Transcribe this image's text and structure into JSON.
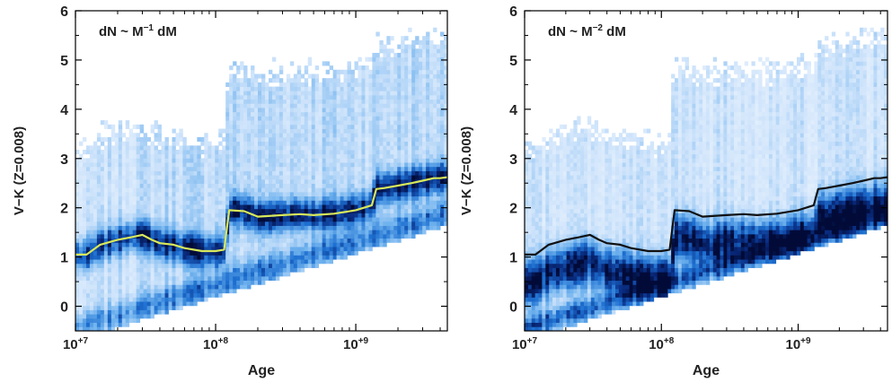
{
  "chart_data": [
    {
      "type": "heatmap",
      "annotation": {
        "base": "dN ~ M",
        "sup": "−1",
        "tail": " dM"
      },
      "xlabel": "Age",
      "ylabel": "V−K (Z=0.008)",
      "x_scale": "log",
      "xlim": [
        10000000.0,
        4500000000.0
      ],
      "ylim": [
        -0.5,
        6
      ],
      "x_ticks": [
        {
          "value": 10000000.0,
          "base": "10",
          "exp": "+7"
        },
        {
          "value": 100000000.0,
          "base": "10",
          "exp": "+8"
        },
        {
          "value": 1000000000.0,
          "base": "10",
          "exp": "+9"
        }
      ],
      "y_ticks": [
        0,
        1,
        2,
        3,
        4,
        5,
        6
      ],
      "grid": false,
      "line_color": "#d8e85a",
      "heat_colors": [
        "#ffffff",
        "#cfe4fb",
        "#6fb2ee",
        "#1d6fd0",
        "#0a2f86",
        "#020b38"
      ],
      "line": {
        "x": [
          10000000.0,
          12000000.0,
          15000000.0,
          20000000.0,
          25000000.0,
          30000000.0,
          35000000.0,
          40000000.0,
          50000000.0,
          60000000.0,
          80000000.0,
          100000000.0,
          115000000.0,
          125000000.0,
          160000000.0,
          200000000.0,
          300000000.0,
          400000000.0,
          500000000.0,
          700000000.0,
          1000000000.0,
          1300000000.0,
          1400000000.0,
          1600000000.0,
          2000000000.0,
          2500000000.0,
          3000000000.0,
          3600000000.0,
          4000000000.0,
          4500000000.0
        ],
        "y": [
          1.05,
          1.05,
          1.25,
          1.35,
          1.4,
          1.45,
          1.35,
          1.28,
          1.25,
          1.18,
          1.12,
          1.12,
          1.15,
          1.95,
          1.93,
          1.82,
          1.85,
          1.87,
          1.85,
          1.88,
          1.95,
          2.05,
          2.38,
          2.4,
          2.45,
          2.5,
          2.55,
          2.6,
          2.6,
          2.62
        ]
      }
    },
    {
      "type": "heatmap",
      "annotation": {
        "base": "dN ~ M",
        "sup": "−2",
        "tail": " dM"
      },
      "xlabel": "Age",
      "ylabel": "V−K (Z=0.008)",
      "x_scale": "log",
      "xlim": [
        10000000.0,
        4500000000.0
      ],
      "ylim": [
        -0.5,
        6
      ],
      "x_ticks": [
        {
          "value": 10000000.0,
          "base": "10",
          "exp": "+7"
        },
        {
          "value": 100000000.0,
          "base": "10",
          "exp": "+8"
        },
        {
          "value": 1000000000.0,
          "base": "10",
          "exp": "+9"
        }
      ],
      "y_ticks": [
        0,
        1,
        2,
        3,
        4,
        5,
        6
      ],
      "grid": false,
      "line_color": "#111111",
      "heat_colors": [
        "#ffffff",
        "#cfe4fb",
        "#6fb2ee",
        "#1d6fd0",
        "#0a2f86",
        "#020b38"
      ],
      "line": {
        "x": [
          10000000.0,
          12000000.0,
          15000000.0,
          20000000.0,
          25000000.0,
          30000000.0,
          35000000.0,
          40000000.0,
          50000000.0,
          60000000.0,
          80000000.0,
          100000000.0,
          115000000.0,
          125000000.0,
          160000000.0,
          200000000.0,
          300000000.0,
          400000000.0,
          500000000.0,
          700000000.0,
          1000000000.0,
          1300000000.0,
          1400000000.0,
          1600000000.0,
          2000000000.0,
          2500000000.0,
          3000000000.0,
          3600000000.0,
          4000000000.0,
          4500000000.0
        ],
        "y": [
          1.05,
          1.05,
          1.25,
          1.35,
          1.4,
          1.45,
          1.35,
          1.28,
          1.25,
          1.18,
          1.12,
          1.12,
          1.15,
          1.95,
          1.93,
          1.82,
          1.85,
          1.87,
          1.85,
          1.88,
          1.95,
          2.05,
          2.38,
          2.4,
          2.45,
          2.5,
          2.55,
          2.6,
          2.6,
          2.62
        ]
      }
    }
  ]
}
